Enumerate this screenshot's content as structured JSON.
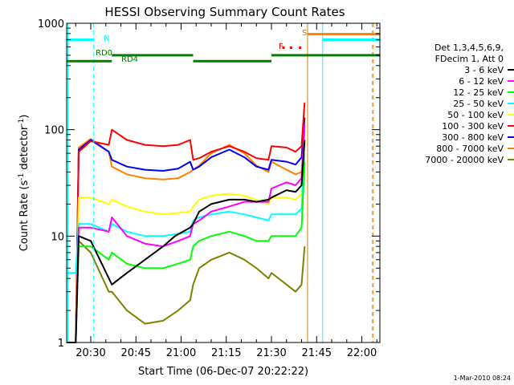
{
  "chart_data": {
    "type": "line",
    "title": "HESSI Observing Summary Count Rates",
    "xlabel": "Start Time (06-Dec-07 20:22:22)",
    "ylabel_main": "Count Rate (s",
    "ylabel_sup": "-1",
    "ylabel_mid": " detector",
    "ylabel_sup2": "-1",
    "ylabel_end": ")",
    "yscale": "log",
    "ylim": [
      1,
      1000
    ],
    "xlim_min": [
      1222,
      1326
    ],
    "x_ticks": [
      {
        "label": "20:30",
        "min": 1230
      },
      {
        "label": "20:45",
        "min": 1245
      },
      {
        "label": "21:00",
        "min": 1260
      },
      {
        "label": "21:15",
        "min": 1275
      },
      {
        "label": "21:30",
        "min": 1290
      },
      {
        "label": "21:45",
        "min": 1305
      },
      {
        "label": "22:00",
        "min": 1320
      }
    ],
    "y_ticks": [
      {
        "label": "1",
        "v": 1
      },
      {
        "label": "10",
        "v": 10
      },
      {
        "label": "100",
        "v": 100
      },
      {
        "label": "1000",
        "v": 1000
      }
    ],
    "legend_header": [
      "Det 1,3,4,5,6,9,",
      "FDecim 1, Att 0"
    ],
    "series": [
      {
        "name": "3 - 6 keV",
        "color": "#000000",
        "x": [
          1222,
          1225,
          1226,
          1230,
          1237,
          1242,
          1248,
          1254,
          1258,
          1263,
          1264,
          1266,
          1270,
          1276,
          1281,
          1285,
          1289,
          1290,
          1295,
          1298,
          1300,
          1301
        ],
        "y": [
          1,
          1,
          10,
          9,
          3.5,
          4.5,
          6,
          8,
          10,
          12,
          13,
          17,
          20,
          22,
          22,
          21,
          22,
          23,
          27,
          26,
          30,
          80
        ]
      },
      {
        "name": "6 - 12 keV",
        "color": "#ff00ff",
        "x": [
          1222,
          1225,
          1226,
          1230,
          1236,
          1237,
          1242,
          1248,
          1254,
          1259,
          1263,
          1264,
          1266,
          1270,
          1276,
          1281,
          1285,
          1289,
          1290,
          1295,
          1298,
          1300,
          1301
        ],
        "y": [
          1,
          1,
          12,
          12,
          11,
          15,
          10,
          8.5,
          8,
          9,
          10,
          13,
          14,
          17,
          19,
          21,
          21,
          21,
          28,
          32,
          30,
          35,
          110
        ]
      },
      {
        "name": "12 - 25 keV",
        "color": "#00ff00",
        "x": [
          1222,
          1225,
          1226,
          1230,
          1236,
          1237,
          1242,
          1248,
          1254,
          1259,
          1263,
          1264,
          1266,
          1270,
          1276,
          1281,
          1285,
          1289,
          1290,
          1295,
          1298,
          1300,
          1301
        ],
        "y": [
          1,
          1,
          8,
          8,
          6,
          7,
          5.5,
          5,
          5,
          5.5,
          6,
          8,
          9,
          10,
          11,
          10,
          9,
          9,
          10,
          10,
          10,
          12,
          50
        ]
      },
      {
        "name": "25 - 50 keV",
        "color": "#00ffff",
        "x": [
          1222,
          1225,
          1226,
          1230,
          1236,
          1237,
          1242,
          1248,
          1254,
          1259,
          1263,
          1264,
          1266,
          1270,
          1276,
          1281,
          1285,
          1289,
          1290,
          1295,
          1298,
          1300,
          1301
        ],
        "y": [
          4.5,
          4.5,
          13,
          13,
          11,
          13,
          11,
          10,
          10,
          10.5,
          11,
          14,
          15,
          16,
          17,
          16,
          15,
          14,
          16,
          16,
          16,
          18,
          60
        ]
      },
      {
        "name": "50 - 100 keV",
        "color": "#ffff00",
        "x": [
          1222,
          1225,
          1226,
          1230,
          1236,
          1237,
          1242,
          1248,
          1254,
          1259,
          1263,
          1264,
          1266,
          1270,
          1276,
          1281,
          1285,
          1289,
          1290,
          1295,
          1298,
          1300,
          1301
        ],
        "y": [
          1,
          1,
          23,
          23,
          20,
          22,
          19,
          17,
          16,
          16.5,
          17,
          19,
          22,
          24,
          25,
          24,
          22,
          20,
          23,
          23,
          22,
          25,
          80
        ]
      },
      {
        "name": "100 - 300 keV",
        "color": "#ff0000",
        "x": [
          1222,
          1225,
          1226,
          1230,
          1236,
          1237,
          1242,
          1248,
          1254,
          1259,
          1263,
          1264,
          1266,
          1270,
          1276,
          1281,
          1285,
          1289,
          1290,
          1295,
          1298,
          1300,
          1301
        ],
        "y": [
          1,
          1,
          62,
          78,
          72,
          100,
          80,
          72,
          70,
          72,
          80,
          52,
          54,
          62,
          70,
          62,
          54,
          52,
          70,
          68,
          62,
          70,
          180
        ]
      },
      {
        "name": "300 - 800 keV",
        "color": "#0000ff",
        "x": [
          1222,
          1225,
          1226,
          1230,
          1236,
          1237,
          1242,
          1248,
          1254,
          1259,
          1263,
          1264,
          1266,
          1270,
          1276,
          1281,
          1285,
          1289,
          1290,
          1295,
          1298,
          1300,
          1301
        ],
        "y": [
          1,
          1,
          65,
          80,
          62,
          52,
          45,
          42,
          41,
          43,
          50,
          42,
          45,
          55,
          65,
          55,
          45,
          42,
          52,
          50,
          47,
          55,
          130
        ]
      },
      {
        "name": "800 - 7000 keV",
        "color": "#ff8000",
        "x": [
          1222,
          1225,
          1226,
          1230,
          1236,
          1237,
          1242,
          1248,
          1254,
          1259,
          1263,
          1264,
          1266,
          1270,
          1276,
          1281,
          1285,
          1289,
          1290,
          1295,
          1298,
          1300,
          1301
        ],
        "y": [
          1,
          1,
          68,
          82,
          62,
          45,
          38,
          35,
          34,
          35,
          40,
          42,
          46,
          60,
          72,
          60,
          46,
          40,
          50,
          42,
          38,
          40,
          100
        ]
      },
      {
        "name": "7000 - 20000 keV",
        "color": "#808000",
        "x": [
          1222,
          1225,
          1226,
          1230,
          1236,
          1237,
          1242,
          1248,
          1254,
          1259,
          1263,
          1264,
          1266,
          1270,
          1276,
          1281,
          1285,
          1289,
          1290,
          1295,
          1298,
          1300,
          1301
        ],
        "y": [
          1,
          1,
          9,
          7,
          3,
          3,
          2,
          1.5,
          1.6,
          2,
          2.5,
          3.5,
          5,
          6,
          7,
          6,
          5,
          4,
          4.5,
          3.5,
          3,
          3.5,
          8
        ]
      }
    ],
    "annotations": {
      "N": "N",
      "RD0": "RD0",
      "RD4": "RD4",
      "F": "F",
      "S": "S"
    },
    "footer": "1-Mar-2010 08:24",
    "colors": {
      "cyan": "#00ffff",
      "green": "#008000",
      "orange": "#ff8000",
      "red": "#ff0000",
      "gold": "#d08000"
    }
  }
}
